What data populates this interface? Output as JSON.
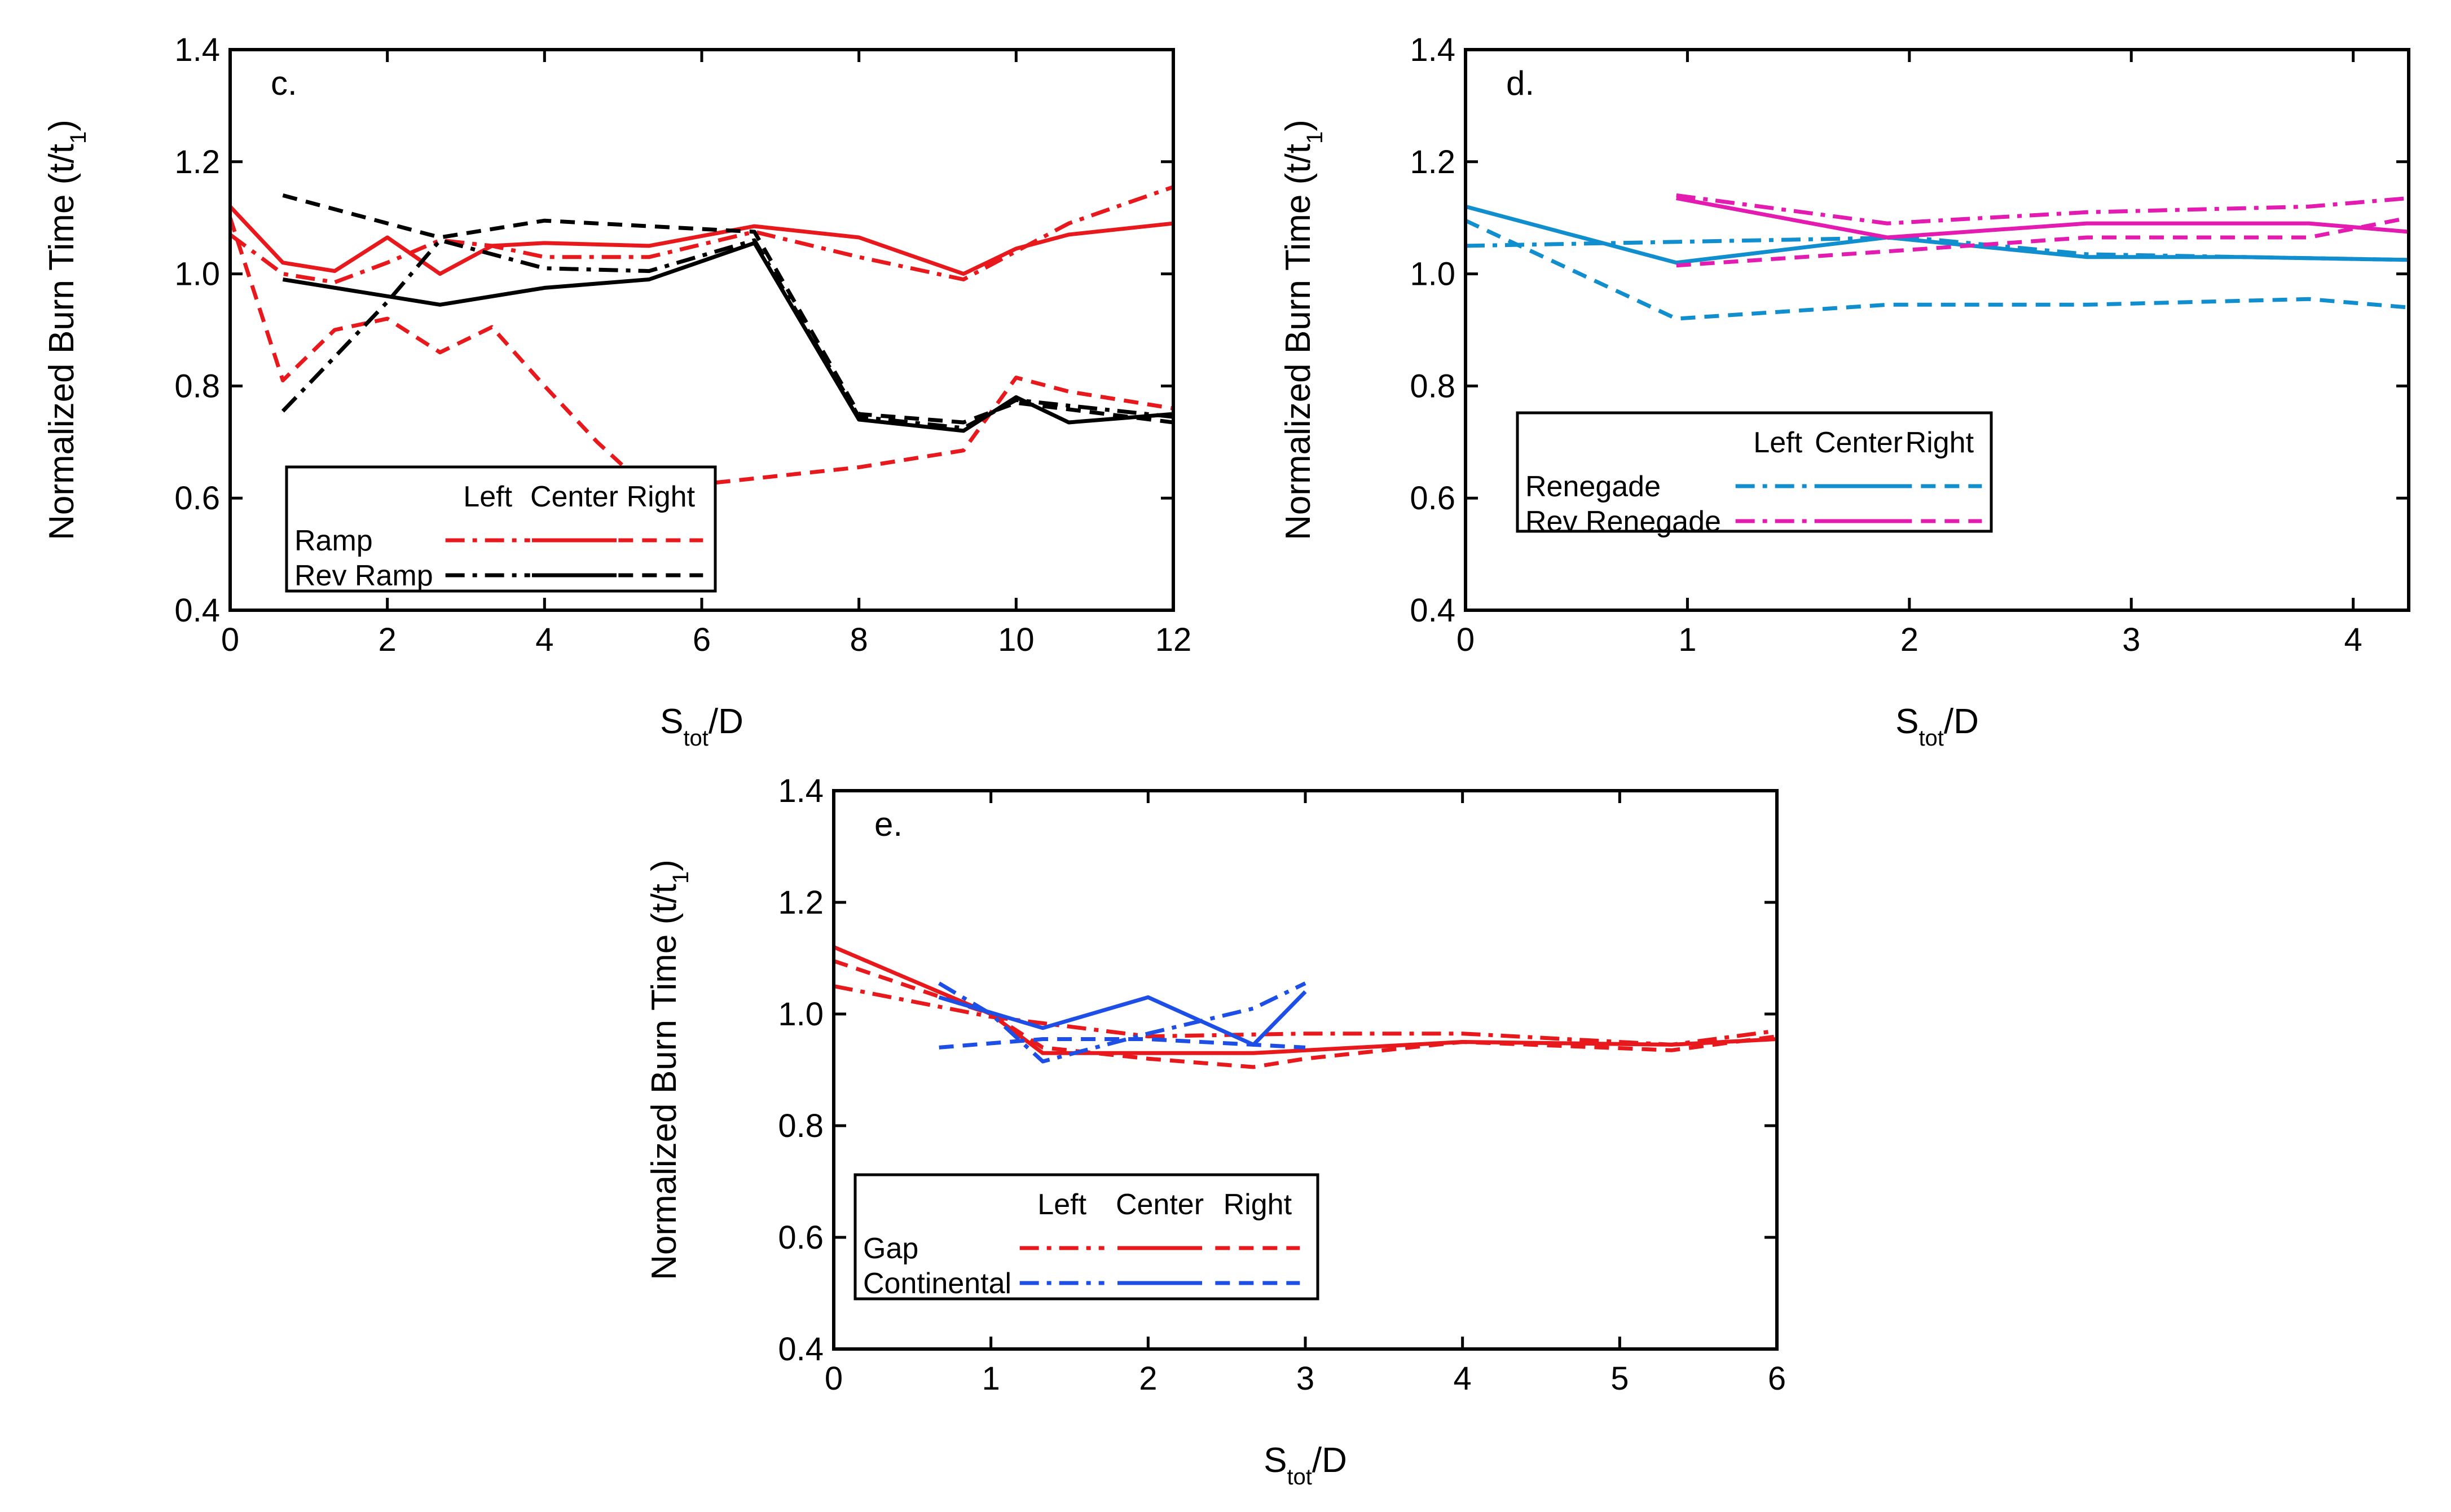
{
  "colors": {
    "red": "#e8191d",
    "black": "#000000",
    "blue_light": "#118ece",
    "magenta": "#e41bb0",
    "blue": "#1d4fe6"
  },
  "chart_data": [
    {
      "type": "line",
      "panel_label": "c.",
      "xlabel": {
        "main": "S",
        "sub": "tot",
        "suffix": "/D"
      },
      "ylabel": {
        "main": "Normalized Burn Time (t/t",
        "sub": "1",
        "suffix": ")"
      },
      "xlim": [
        0,
        12
      ],
      "ylim": [
        0.4,
        1.4
      ],
      "xticks": [
        0,
        2,
        4,
        6,
        8,
        10,
        12
      ],
      "xtick_labels": [
        "0",
        "2",
        "4",
        "6",
        "8",
        "10",
        "12"
      ],
      "yticks": [
        0.4,
        0.6,
        0.8,
        1.0,
        1.2,
        1.4
      ],
      "ytick_labels": [
        "0.4",
        "0.6",
        "0.8",
        "1.0",
        "1.2",
        "1.4"
      ],
      "legend": {
        "position": "lower-left",
        "columns": [
          "Left",
          "Center",
          "Right"
        ],
        "rows": [
          "Ramp",
          "Rev Ramp"
        ]
      },
      "series": [
        {
          "name": "Ramp Left",
          "color": "#e8191d",
          "dash": "dashdot",
          "x": [
            0,
            0.67,
            1.33,
            2,
            2.67,
            3.33,
            4,
            5.33,
            6.67,
            8,
            9.33,
            10,
            10.67,
            12
          ],
          "y": [
            1.07,
            1.0,
            0.985,
            1.02,
            1.06,
            1.05,
            1.03,
            1.03,
            1.075,
            1.03,
            0.99,
            1.04,
            1.09,
            1.155
          ]
        },
        {
          "name": "Ramp Center",
          "color": "#e8191d",
          "dash": "solid",
          "x": [
            0,
            0.67,
            1.33,
            2,
            2.67,
            3.33,
            4,
            5.33,
            6.67,
            8,
            9.33,
            10,
            10.67,
            12
          ],
          "y": [
            1.12,
            1.02,
            1.005,
            1.065,
            1.0,
            1.05,
            1.055,
            1.05,
            1.085,
            1.065,
            1.0,
            1.045,
            1.07,
            1.09
          ]
        },
        {
          "name": "Ramp Right",
          "color": "#e8191d",
          "dash": "dash",
          "x": [
            0,
            0.67,
            1.33,
            2,
            2.67,
            3.33,
            4,
            4.67,
            5.33,
            6.67,
            8,
            9.33,
            10,
            10.67,
            12
          ],
          "y": [
            1.1,
            0.81,
            0.9,
            0.92,
            0.86,
            0.905,
            0.8,
            0.7,
            0.615,
            0.635,
            0.655,
            0.685,
            0.815,
            0.79,
            0.76
          ]
        },
        {
          "name": "Rev Ramp Left",
          "color": "#000000",
          "dash": "dashdot",
          "x": [
            0.67,
            2,
            2.67,
            4,
            5.33,
            6.67,
            8,
            9.33,
            10,
            12
          ],
          "y": [
            0.755,
            0.95,
            1.06,
            1.01,
            1.005,
            1.06,
            0.745,
            0.725,
            0.775,
            0.745
          ]
        },
        {
          "name": "Rev Ramp Center",
          "color": "#000000",
          "dash": "solid",
          "x": [
            0.67,
            2.67,
            4,
            5.33,
            6.67,
            8,
            9.33,
            10,
            10.67,
            12
          ],
          "y": [
            0.99,
            0.945,
            0.975,
            0.99,
            1.055,
            0.74,
            0.72,
            0.78,
            0.735,
            0.75
          ]
        },
        {
          "name": "Rev Ramp Right",
          "color": "#000000",
          "dash": "dash",
          "x": [
            0.67,
            2.67,
            4,
            5.33,
            6.67,
            8,
            9.33,
            10,
            12
          ],
          "y": [
            1.14,
            1.065,
            1.095,
            1.085,
            1.075,
            0.75,
            0.735,
            0.77,
            0.735
          ]
        }
      ]
    },
    {
      "type": "line",
      "panel_label": "d.",
      "xlabel": {
        "main": "S",
        "sub": "tot",
        "suffix": "/D"
      },
      "ylabel": {
        "main": "Normalized Burn Time (t/t",
        "sub": "1",
        "suffix": ")"
      },
      "xlim": [
        0,
        4.25
      ],
      "ylim": [
        0.4,
        1.4
      ],
      "xticks": [
        0,
        1,
        2,
        3,
        4
      ],
      "xtick_labels": [
        "0",
        "1",
        "2",
        "3",
        "4"
      ],
      "yticks": [
        0.4,
        0.6,
        0.8,
        1.0,
        1.2,
        1.4
      ],
      "ytick_labels": [
        "0.4",
        "0.6",
        "0.8",
        "1.0",
        "1.2",
        "1.4"
      ],
      "legend": {
        "position": "center-left",
        "columns": [
          "Left",
          "Center",
          "Right"
        ],
        "rows": [
          "Renegade",
          "Rev Renegade"
        ]
      },
      "series": [
        {
          "name": "Renegade Left",
          "color": "#118ece",
          "dash": "dashdot",
          "x": [
            0,
            1.33,
            2.0,
            2.8,
            3.5,
            4.25
          ],
          "y": [
            1.05,
            1.06,
            1.065,
            1.035,
            1.03,
            1.025
          ]
        },
        {
          "name": "Renegade Center",
          "color": "#118ece",
          "dash": "solid",
          "x": [
            0,
            0.95,
            1.9,
            2.8,
            3.5,
            4.25
          ],
          "y": [
            1.12,
            1.02,
            1.065,
            1.03,
            1.03,
            1.025
          ]
        },
        {
          "name": "Renegade Right",
          "color": "#118ece",
          "dash": "dash",
          "x": [
            0,
            0.95,
            1.9,
            2.8,
            3.8,
            4.25
          ],
          "y": [
            1.095,
            0.92,
            0.945,
            0.945,
            0.955,
            0.94
          ]
        },
        {
          "name": "Rev Renegade Left",
          "color": "#e41bb0",
          "dash": "dashdot",
          "x": [
            0.95,
            1.9,
            2.8,
            3.8,
            4.25
          ],
          "y": [
            1.14,
            1.09,
            1.11,
            1.12,
            1.135
          ]
        },
        {
          "name": "Rev Renegade Center",
          "color": "#e41bb0",
          "dash": "solid",
          "x": [
            0.95,
            1.9,
            2.8,
            3.8,
            4.25
          ],
          "y": [
            1.135,
            1.065,
            1.09,
            1.09,
            1.075
          ]
        },
        {
          "name": "Rev Renegade Right",
          "color": "#e41bb0",
          "dash": "dash",
          "x": [
            0.95,
            1.9,
            2.8,
            3.8,
            4.25
          ],
          "y": [
            1.015,
            1.04,
            1.065,
            1.065,
            1.1
          ]
        }
      ]
    },
    {
      "type": "line",
      "panel_label": "e.",
      "xlabel": {
        "main": "S",
        "sub": "tot",
        "suffix": "/D"
      },
      "ylabel": {
        "main": "Normalized Burn Time (t/t",
        "sub": "1",
        "suffix": ")"
      },
      "xlim": [
        0,
        6
      ],
      "ylim": [
        0.4,
        1.4
      ],
      "xticks": [
        0,
        1,
        2,
        3,
        4,
        5,
        6
      ],
      "xtick_labels": [
        "0",
        "1",
        "2",
        "3",
        "4",
        "5",
        "6"
      ],
      "yticks": [
        0.4,
        0.6,
        0.8,
        1.0,
        1.2,
        1.4
      ],
      "ytick_labels": [
        "0.4",
        "0.6",
        "0.8",
        "1.0",
        "1.2",
        "1.4"
      ],
      "legend": {
        "position": "lower-left",
        "columns": [
          "Left",
          "Center",
          "Right"
        ],
        "rows": [
          "Gap",
          "Continental"
        ]
      },
      "series": [
        {
          "name": "Gap Left",
          "color": "#e8191d",
          "dash": "dashdot",
          "x": [
            0,
            1,
            2,
            3,
            4,
            5.33,
            6
          ],
          "y": [
            1.05,
            0.995,
            0.96,
            0.965,
            0.965,
            0.945,
            0.97
          ]
        },
        {
          "name": "Gap Center",
          "color": "#e8191d",
          "dash": "solid",
          "x": [
            0,
            1,
            1.33,
            2,
            2.67,
            4,
            5.33,
            6
          ],
          "y": [
            1.12,
            1.0,
            0.93,
            0.93,
            0.93,
            0.95,
            0.945,
            0.955
          ]
        },
        {
          "name": "Gap Right",
          "color": "#e8191d",
          "dash": "dash",
          "x": [
            0,
            1,
            1.33,
            2,
            2.67,
            3,
            4,
            5.33,
            6
          ],
          "y": [
            1.095,
            1.0,
            0.94,
            0.92,
            0.905,
            0.92,
            0.95,
            0.935,
            0.96
          ]
        },
        {
          "name": "Continental Left",
          "color": "#1d4fe6",
          "dash": "dashdot",
          "x": [
            0.67,
            1.0,
            1.33,
            2,
            2.67,
            3
          ],
          "y": [
            1.055,
            1.0,
            0.915,
            0.965,
            1.01,
            1.055
          ]
        },
        {
          "name": "Continental Center",
          "color": "#1d4fe6",
          "dash": "solid",
          "x": [
            0.67,
            1.33,
            2,
            2.67,
            3
          ],
          "y": [
            1.03,
            0.975,
            1.03,
            0.945,
            1.04
          ]
        },
        {
          "name": "Continental Right",
          "color": "#1d4fe6",
          "dash": "dash",
          "x": [
            0.67,
            1.33,
            2,
            2.67,
            3
          ],
          "y": [
            0.94,
            0.955,
            0.955,
            0.945,
            0.94
          ]
        }
      ]
    }
  ]
}
